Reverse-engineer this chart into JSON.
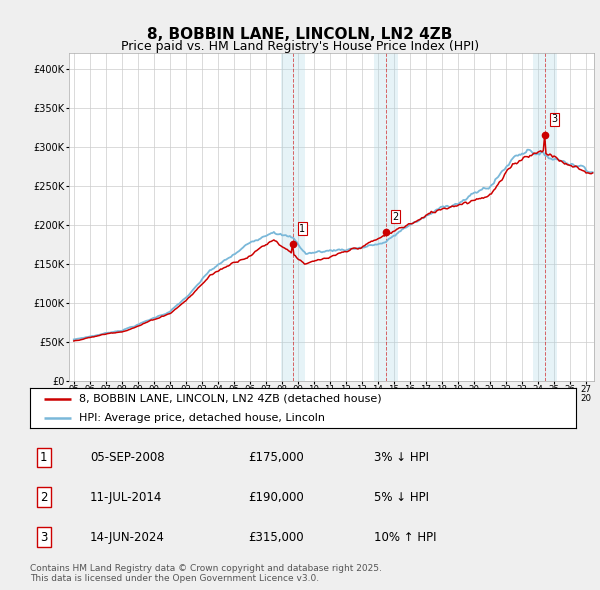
{
  "title": "8, BOBBIN LANE, LINCOLN, LN2 4ZB",
  "subtitle": "Price paid vs. HM Land Registry's House Price Index (HPI)",
  "ylim": [
    0,
    420000
  ],
  "yticks": [
    0,
    50000,
    100000,
    150000,
    200000,
    250000,
    300000,
    350000,
    400000
  ],
  "ytick_labels": [
    "£0",
    "£50K",
    "£100K",
    "£150K",
    "£200K",
    "£250K",
    "£300K",
    "£350K",
    "£400K"
  ],
  "sale_dates": [
    2008.68,
    2014.52,
    2024.45
  ],
  "sale_prices": [
    175000,
    190000,
    315000
  ],
  "sale_labels": [
    "1",
    "2",
    "3"
  ],
  "vline_color": "#cc0000",
  "vshade_color": "#add8e6",
  "vshade_alpha": 0.3,
  "hpi_line_color": "#7ab8d9",
  "price_line_color": "#cc0000",
  "legend_entries": [
    "8, BOBBIN LANE, LINCOLN, LN2 4ZB (detached house)",
    "HPI: Average price, detached house, Lincoln"
  ],
  "table_data": [
    [
      "1",
      "05-SEP-2008",
      "£175,000",
      "3% ↓ HPI"
    ],
    [
      "2",
      "11-JUL-2014",
      "£190,000",
      "5% ↓ HPI"
    ],
    [
      "3",
      "14-JUN-2024",
      "£315,000",
      "10% ↑ HPI"
    ]
  ],
  "footnote": "Contains HM Land Registry data © Crown copyright and database right 2025.\nThis data is licensed under the Open Government Licence v3.0.",
  "background_color": "#efefef",
  "plot_bg_color": "#ffffff",
  "grid_color": "#cccccc",
  "title_fontsize": 11,
  "subtitle_fontsize": 9,
  "tick_fontsize": 7,
  "legend_fontsize": 8,
  "table_fontsize": 8.5,
  "footnote_fontsize": 6.5
}
